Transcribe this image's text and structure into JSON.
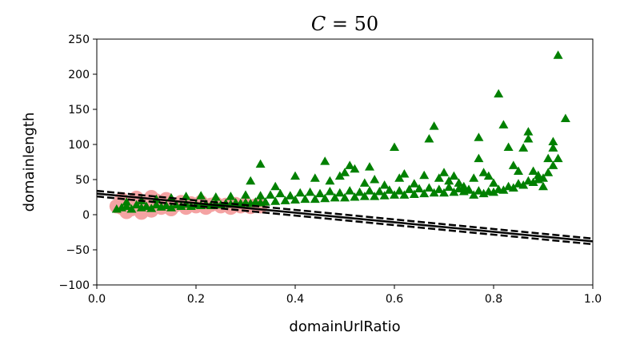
{
  "chart_data": {
    "type": "scatter",
    "title_var": "C",
    "title_rest": " = 50",
    "xlabel": "domainUrlRatio",
    "ylabel": "domainlength",
    "xlim": [
      0.0,
      1.0
    ],
    "ylim": [
      -100,
      250
    ],
    "xticks": [
      "0.0",
      "0.2",
      "0.4",
      "0.6",
      "0.8",
      "1.0"
    ],
    "yticks": [
      "250",
      "200",
      "150",
      "100",
      "50",
      "0",
      "−50",
      "−100"
    ],
    "grid": false,
    "colors": {
      "class_positive": "#008000",
      "class_negative_highlight": "#f4a3a3",
      "decision_lines": "#000000"
    },
    "decision_boundary": {
      "x": [
        0.0,
        1.0
      ],
      "y": [
        30,
        -38
      ]
    },
    "margin_upper": {
      "x": [
        0.0,
        1.0
      ],
      "y": [
        34,
        -34
      ]
    },
    "margin_lower": {
      "x": [
        0.0,
        1.0
      ],
      "y": [
        26,
        -42
      ]
    },
    "highlight_points": [
      [
        0.04,
        12
      ],
      [
        0.05,
        10
      ],
      [
        0.06,
        16
      ],
      [
        0.07,
        8
      ],
      [
        0.08,
        18
      ],
      [
        0.09,
        12
      ],
      [
        0.1,
        14
      ],
      [
        0.11,
        6
      ],
      [
        0.12,
        20
      ],
      [
        0.13,
        10
      ],
      [
        0.14,
        16
      ],
      [
        0.15,
        8
      ],
      [
        0.16,
        14
      ],
      [
        0.17,
        18
      ],
      [
        0.18,
        10
      ],
      [
        0.19,
        16
      ],
      [
        0.2,
        12
      ],
      [
        0.21,
        18
      ],
      [
        0.22,
        10
      ],
      [
        0.23,
        14
      ],
      [
        0.24,
        16
      ],
      [
        0.25,
        12
      ],
      [
        0.26,
        14
      ],
      [
        0.27,
        10
      ],
      [
        0.28,
        15
      ],
      [
        0.29,
        12
      ],
      [
        0.3,
        14
      ],
      [
        0.31,
        11
      ],
      [
        0.32,
        13
      ],
      [
        0.33,
        12
      ],
      [
        0.05,
        22
      ],
      [
        0.08,
        24
      ],
      [
        0.11,
        25
      ],
      [
        0.14,
        22
      ],
      [
        0.06,
        4
      ],
      [
        0.09,
        3
      ]
    ],
    "series_points": [
      [
        0.04,
        8
      ],
      [
        0.05,
        10
      ],
      [
        0.06,
        12
      ],
      [
        0.07,
        8
      ],
      [
        0.08,
        14
      ],
      [
        0.09,
        10
      ],
      [
        0.1,
        12
      ],
      [
        0.11,
        9
      ],
      [
        0.12,
        14
      ],
      [
        0.13,
        11
      ],
      [
        0.14,
        13
      ],
      [
        0.15,
        10
      ],
      [
        0.16,
        14
      ],
      [
        0.17,
        12
      ],
      [
        0.18,
        15
      ],
      [
        0.19,
        12
      ],
      [
        0.2,
        14
      ],
      [
        0.21,
        13
      ],
      [
        0.22,
        15
      ],
      [
        0.23,
        13
      ],
      [
        0.24,
        16
      ],
      [
        0.25,
        14
      ],
      [
        0.26,
        16
      ],
      [
        0.27,
        15
      ],
      [
        0.28,
        17
      ],
      [
        0.29,
        16
      ],
      [
        0.3,
        17
      ],
      [
        0.31,
        16
      ],
      [
        0.32,
        18
      ],
      [
        0.33,
        17
      ],
      [
        0.06,
        18
      ],
      [
        0.09,
        20
      ],
      [
        0.12,
        22
      ],
      [
        0.15,
        24
      ],
      [
        0.18,
        26
      ],
      [
        0.21,
        27
      ],
      [
        0.24,
        25
      ],
      [
        0.27,
        26
      ],
      [
        0.3,
        28
      ],
      [
        0.33,
        27
      ],
      [
        0.34,
        18
      ],
      [
        0.36,
        19
      ],
      [
        0.38,
        20
      ],
      [
        0.4,
        21
      ],
      [
        0.42,
        22
      ],
      [
        0.44,
        22
      ],
      [
        0.46,
        23
      ],
      [
        0.48,
        24
      ],
      [
        0.5,
        24
      ],
      [
        0.52,
        25
      ],
      [
        0.54,
        26
      ],
      [
        0.56,
        26
      ],
      [
        0.58,
        27
      ],
      [
        0.6,
        28
      ],
      [
        0.62,
        28
      ],
      [
        0.64,
        29
      ],
      [
        0.66,
        30
      ],
      [
        0.68,
        31
      ],
      [
        0.7,
        31
      ],
      [
        0.72,
        32
      ],
      [
        0.74,
        33
      ],
      [
        0.35,
        28
      ],
      [
        0.37,
        30
      ],
      [
        0.39,
        27
      ],
      [
        0.41,
        31
      ],
      [
        0.43,
        32
      ],
      [
        0.45,
        30
      ],
      [
        0.47,
        33
      ],
      [
        0.49,
        31
      ],
      [
        0.51,
        34
      ],
      [
        0.53,
        32
      ],
      [
        0.55,
        34
      ],
      [
        0.57,
        33
      ],
      [
        0.59,
        35
      ],
      [
        0.61,
        34
      ],
      [
        0.63,
        36
      ],
      [
        0.65,
        37
      ],
      [
        0.67,
        38
      ],
      [
        0.69,
        36
      ],
      [
        0.71,
        39
      ],
      [
        0.73,
        37
      ],
      [
        0.75,
        36
      ],
      [
        0.33,
        72
      ],
      [
        0.31,
        48
      ],
      [
        0.36,
        40
      ],
      [
        0.4,
        55
      ],
      [
        0.44,
        52
      ],
      [
        0.46,
        76
      ],
      [
        0.47,
        48
      ],
      [
        0.49,
        55
      ],
      [
        0.5,
        60
      ],
      [
        0.51,
        70
      ],
      [
        0.52,
        65
      ],
      [
        0.54,
        45
      ],
      [
        0.55,
        68
      ],
      [
        0.56,
        50
      ],
      [
        0.58,
        42
      ],
      [
        0.6,
        96
      ],
      [
        0.61,
        52
      ],
      [
        0.62,
        58
      ],
      [
        0.64,
        44
      ],
      [
        0.66,
        56
      ],
      [
        0.67,
        108
      ],
      [
        0.68,
        126
      ],
      [
        0.69,
        52
      ],
      [
        0.7,
        60
      ],
      [
        0.71,
        48
      ],
      [
        0.72,
        55
      ],
      [
        0.73,
        45
      ],
      [
        0.74,
        40
      ],
      [
        0.76,
        52
      ],
      [
        0.77,
        110
      ],
      [
        0.77,
        80
      ],
      [
        0.78,
        60
      ],
      [
        0.79,
        55
      ],
      [
        0.8,
        45
      ],
      [
        0.81,
        172
      ],
      [
        0.82,
        128
      ],
      [
        0.83,
        96
      ],
      [
        0.84,
        70
      ],
      [
        0.85,
        62
      ],
      [
        0.86,
        95
      ],
      [
        0.87,
        108
      ],
      [
        0.87,
        118
      ],
      [
        0.88,
        62
      ],
      [
        0.89,
        56
      ],
      [
        0.9,
        40
      ],
      [
        0.91,
        80
      ],
      [
        0.92,
        104
      ],
      [
        0.93,
        227
      ],
      [
        0.945,
        137
      ],
      [
        0.92,
        95
      ],
      [
        0.76,
        28
      ],
      [
        0.78,
        30
      ],
      [
        0.8,
        32
      ],
      [
        0.82,
        35
      ],
      [
        0.84,
        38
      ],
      [
        0.86,
        42
      ],
      [
        0.88,
        46
      ],
      [
        0.9,
        52
      ],
      [
        0.91,
        60
      ],
      [
        0.92,
        70
      ],
      [
        0.93,
        80
      ],
      [
        0.75,
        35
      ],
      [
        0.77,
        34
      ],
      [
        0.79,
        33
      ],
      [
        0.81,
        36
      ],
      [
        0.83,
        40
      ],
      [
        0.85,
        44
      ],
      [
        0.87,
        48
      ],
      [
        0.89,
        50
      ]
    ]
  }
}
